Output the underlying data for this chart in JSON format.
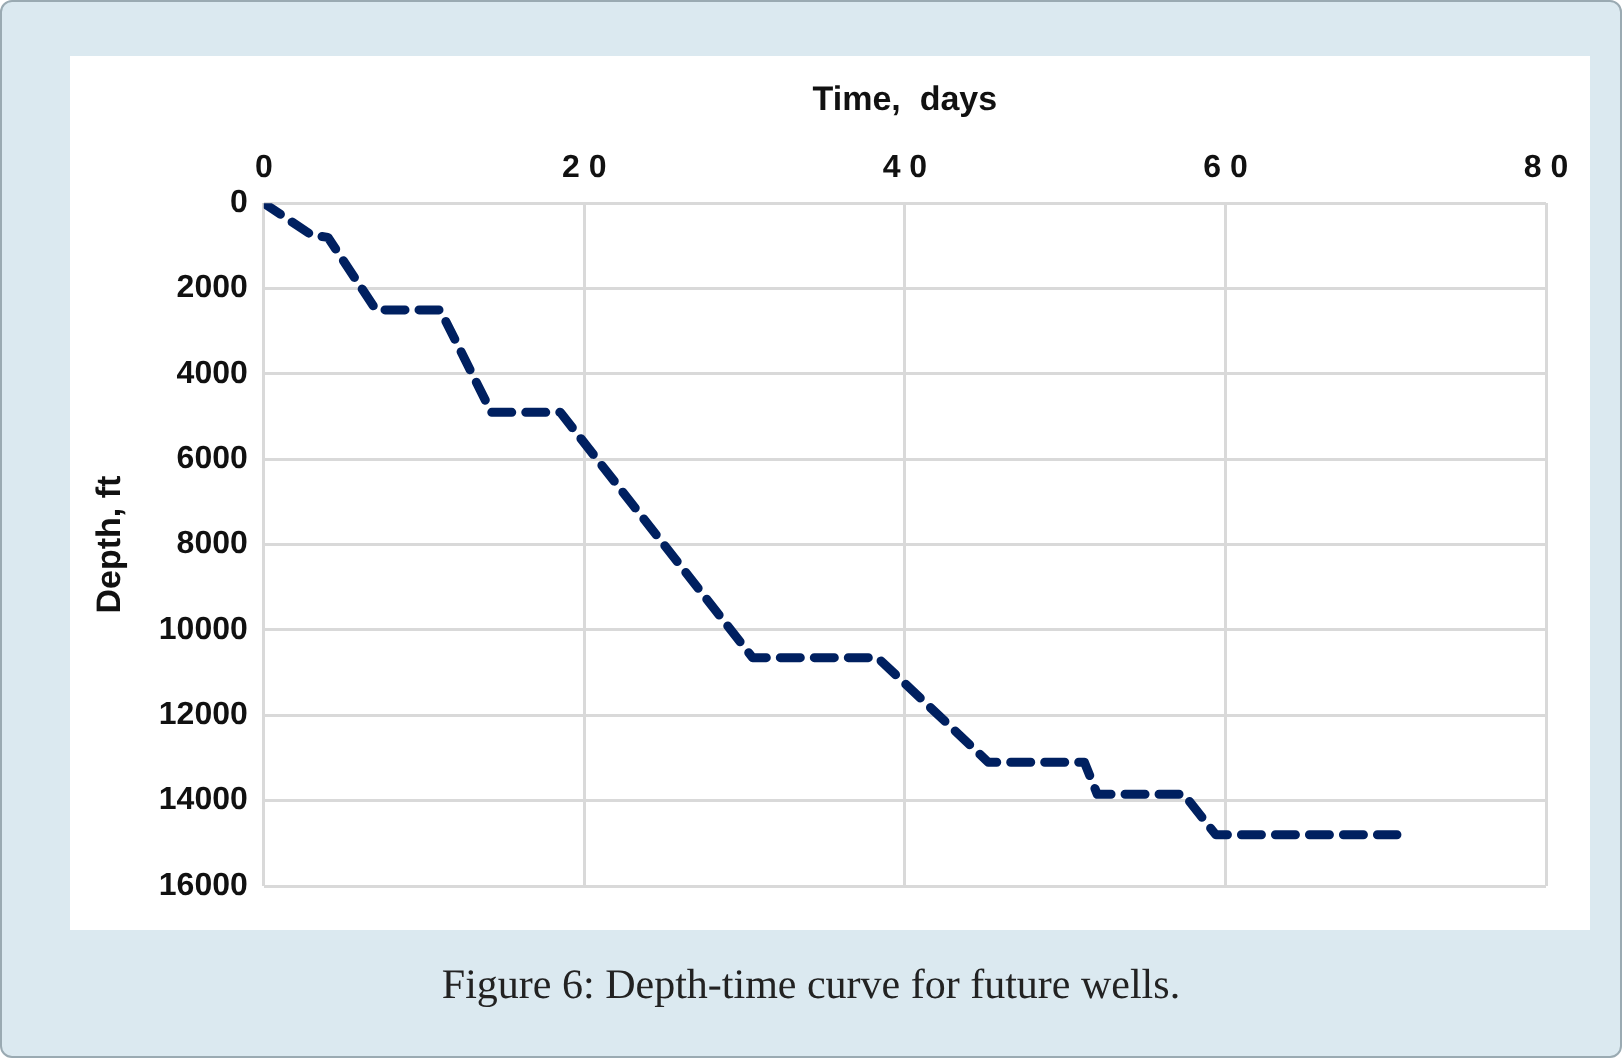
{
  "chart_data": {
    "type": "line",
    "xlabel": "Time,  days",
    "ylabel": "Depth, ft",
    "x": [
      0,
      3,
      4,
      7,
      11,
      14.2,
      18.5,
      30.5,
      38.3,
      45.2,
      51.2,
      52,
      57.4,
      59.4,
      70.7
    ],
    "series": [
      {
        "color": "#002060",
        "values": [
          0,
          750,
          800,
          2500,
          2500,
          4900,
          4900,
          10650,
          10650,
          13100,
          13100,
          13850,
          13850,
          14800,
          14800
        ]
      }
    ],
    "xlim": [
      0,
      80
    ],
    "xticks": [
      0,
      20,
      40,
      60,
      80
    ],
    "ylim": [
      16000,
      0
    ],
    "yticks": [
      0,
      2000,
      4000,
      6000,
      8000,
      10000,
      12000,
      14000,
      16000
    ],
    "grid": true,
    "legend": false,
    "marker": "none",
    "line_style": "dashed",
    "annotations": [
      "Figure 6: Depth-time curve for future wells."
    ]
  }
}
